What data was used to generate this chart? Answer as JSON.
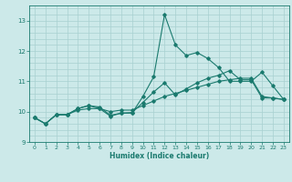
{
  "xlabel": "Humidex (Indice chaleur)",
  "x": [
    0,
    1,
    2,
    3,
    4,
    5,
    6,
    7,
    8,
    9,
    10,
    11,
    12,
    13,
    14,
    15,
    16,
    17,
    18,
    19,
    20,
    21,
    22,
    23
  ],
  "line1": [
    9.8,
    9.6,
    9.9,
    9.9,
    10.1,
    10.2,
    10.1,
    9.85,
    9.95,
    9.95,
    10.5,
    11.15,
    13.2,
    12.2,
    11.85,
    11.95,
    11.75,
    11.45,
    11.0,
    11.0,
    11.0,
    11.3,
    10.85,
    10.4
  ],
  "line2": [
    9.8,
    9.6,
    9.9,
    9.9,
    10.1,
    10.2,
    10.15,
    9.88,
    9.95,
    9.97,
    10.3,
    10.65,
    10.95,
    10.55,
    10.75,
    10.95,
    11.1,
    11.2,
    11.35,
    11.05,
    11.05,
    10.45,
    10.45,
    10.4
  ],
  "line3": [
    9.8,
    9.6,
    9.9,
    9.9,
    10.05,
    10.1,
    10.1,
    10.0,
    10.05,
    10.05,
    10.2,
    10.35,
    10.5,
    10.6,
    10.7,
    10.8,
    10.9,
    11.0,
    11.05,
    11.1,
    11.1,
    10.5,
    10.45,
    10.4
  ],
  "line_color": "#1a7a6e",
  "bg_color": "#cce9e9",
  "grid_color": "#a8d0d0",
  "ylim": [
    9.0,
    13.5
  ],
  "yticks": [
    9,
    10,
    11,
    12,
    13
  ],
  "xticks": [
    0,
    1,
    2,
    3,
    4,
    5,
    6,
    7,
    8,
    9,
    10,
    11,
    12,
    13,
    14,
    15,
    16,
    17,
    18,
    19,
    20,
    21,
    22,
    23
  ],
  "xlim": [
    -0.5,
    23.5
  ]
}
